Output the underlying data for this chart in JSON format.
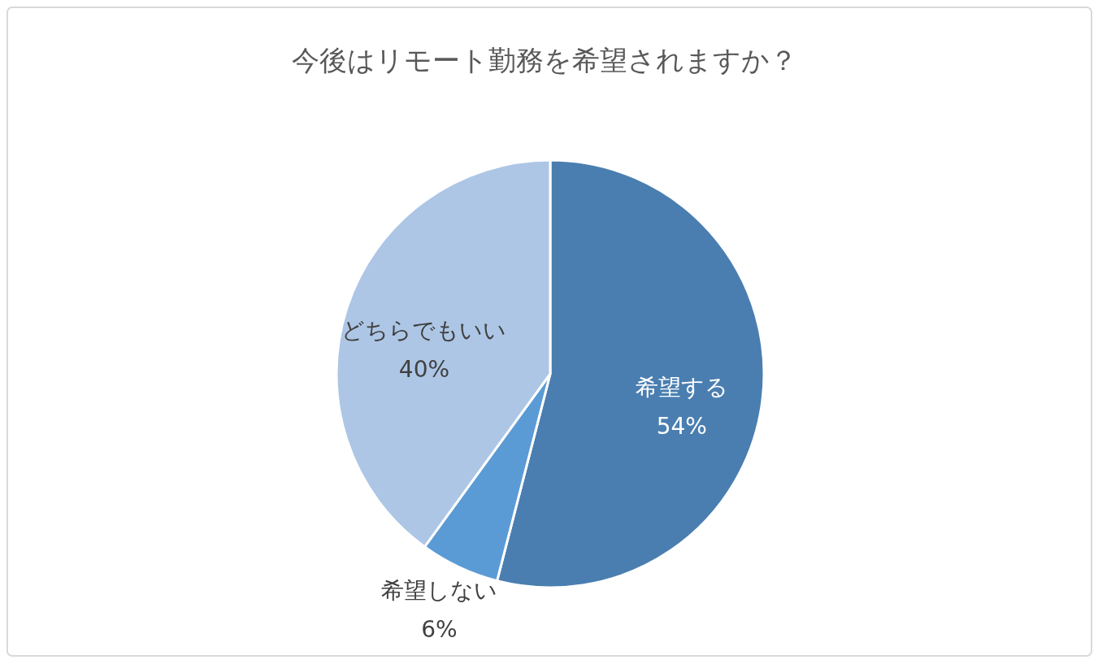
{
  "chart_data": {
    "type": "pie",
    "title": "今後はリモート勤務を希望されますか？",
    "categories": [
      "希望する",
      "希望しない",
      "どちらでもいい"
    ],
    "values": [
      54,
      6,
      40
    ],
    "colors": [
      "#4a7eb0",
      "#5b9bd5",
      "#adc6e5"
    ],
    "value_labels": [
      "54%",
      "6%",
      "40%"
    ]
  }
}
